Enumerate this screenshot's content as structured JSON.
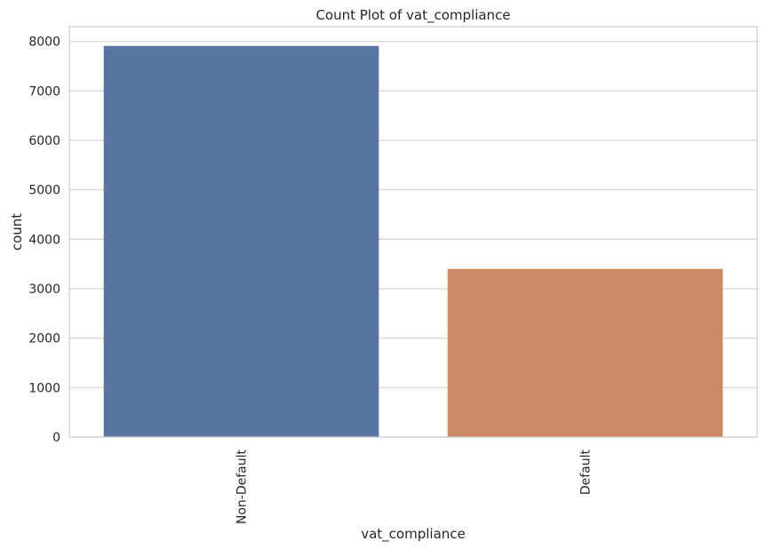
{
  "chart_data": {
    "type": "bar",
    "title": "Count Plot of vat_compliance",
    "xlabel": "vat_compliance",
    "ylabel": "count",
    "categories": [
      "Non-Default",
      "Default"
    ],
    "values": [
      7910,
      3400
    ],
    "colors": [
      "#5875a4",
      "#cc8963"
    ],
    "ylim": [
      0,
      8300
    ],
    "yticks": [
      0,
      1000,
      2000,
      3000,
      4000,
      5000,
      6000,
      7000,
      8000
    ],
    "grid": "horizontal",
    "xtick_rotation": "vertical"
  }
}
